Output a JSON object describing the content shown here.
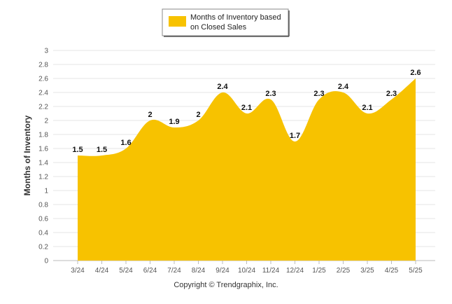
{
  "chart_data": {
    "type": "area",
    "categories": [
      "3/24",
      "4/24",
      "5/24",
      "6/24",
      "7/24",
      "8/24",
      "9/24",
      "10/24",
      "11/24",
      "12/24",
      "1/25",
      "2/25",
      "3/25",
      "4/25",
      "5/25"
    ],
    "series": [
      {
        "name": "Months of Inventory based on Closed Sales",
        "values": [
          1.5,
          1.5,
          1.6,
          2,
          1.9,
          2,
          2.4,
          2.1,
          2.3,
          1.7,
          2.3,
          2.4,
          2.1,
          2.3,
          2.6
        ]
      }
    ],
    "data_labels": [
      "1.5",
      "1.5",
      "1.6",
      "2",
      "1.9",
      "2",
      "2.4",
      "2.1",
      "2.3",
      "1.7",
      "2.3",
      "2.4",
      "2.1",
      "2.3",
      "2.6"
    ],
    "ylabel": "Months of Inventory",
    "xlabel": "",
    "ylim": [
      0,
      3
    ],
    "yticks": [
      "0",
      "0.2",
      "0.4",
      "0.6",
      "0.8",
      "1",
      "1.2",
      "1.4",
      "1.6",
      "1.8",
      "2",
      "2.2",
      "2.4",
      "2.6",
      "2.8",
      "3"
    ],
    "grid": true,
    "legend_position": "top-center",
    "colors": {
      "fill": "#f7c200",
      "grid": "#e6e6e6",
      "axis": "#bbbbbb"
    }
  },
  "legend": {
    "line1": "Months of Inventory based",
    "line2": "on Closed Sales"
  },
  "footer": {
    "copyright": "Copyright © Trendgraphix, Inc."
  }
}
